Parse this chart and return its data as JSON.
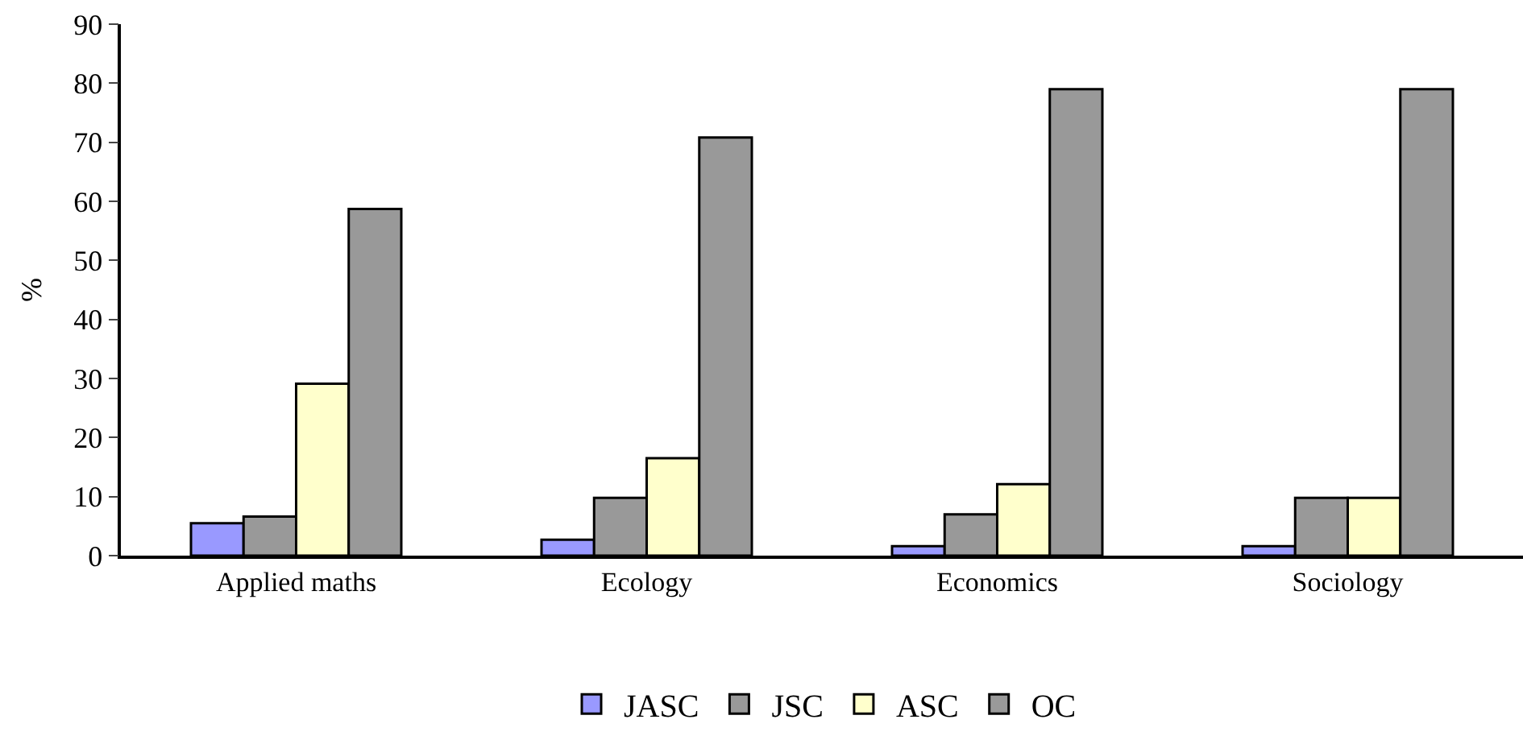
{
  "chart_data": {
    "type": "bar",
    "ylabel": "%",
    "categories": [
      "Applied maths",
      "Ecology",
      "Economics",
      "Sociology"
    ],
    "series": [
      {
        "name": "JASC",
        "color": "#9999ff",
        "values": [
          5.5,
          2.7,
          1.6,
          1.6
        ]
      },
      {
        "name": "JSC",
        "color": "#999999",
        "values": [
          6.6,
          9.8,
          7.0,
          9.8
        ]
      },
      {
        "name": "ASC",
        "color": "#ffffcc",
        "values": [
          29.1,
          16.5,
          12.1,
          9.8
        ]
      },
      {
        "name": "OC",
        "color": "#999999",
        "values": [
          58.7,
          70.8,
          79.0,
          79.0
        ]
      }
    ],
    "ylim": [
      0,
      90
    ],
    "yticks": [
      0,
      10,
      20,
      30,
      40,
      50,
      60,
      70,
      80,
      90
    ],
    "legend": "bottom"
  }
}
